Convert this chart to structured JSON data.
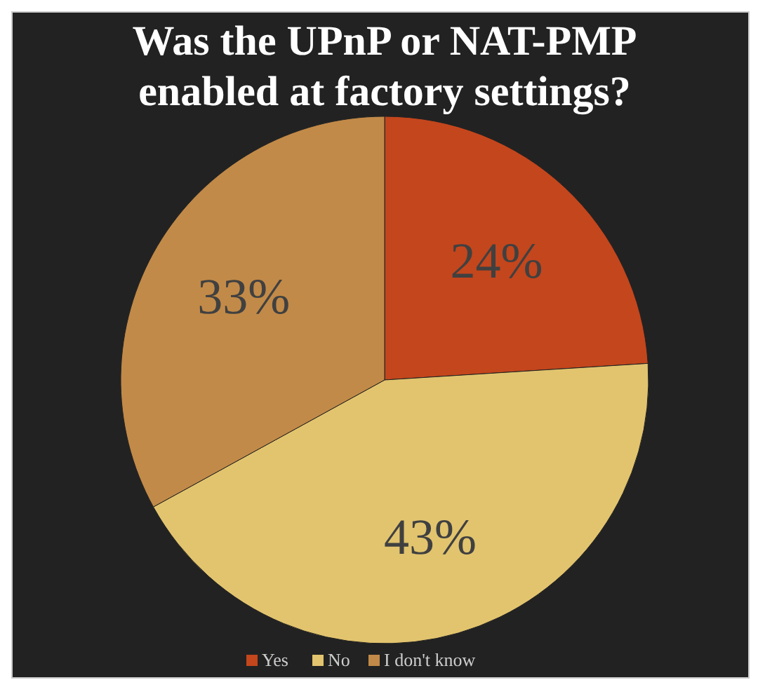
{
  "chart_data": {
    "type": "pie",
    "title": "Was the UPnP or NAT-PMP enabled at factory settings?",
    "categories": [
      "Yes",
      "No",
      "I don't know"
    ],
    "values": [
      24,
      43,
      33
    ],
    "value_labels": [
      "24%",
      "43%",
      "33%"
    ],
    "colors": [
      "#c4461c",
      "#e2c46e",
      "#c28a48"
    ],
    "legend": "bottom"
  }
}
